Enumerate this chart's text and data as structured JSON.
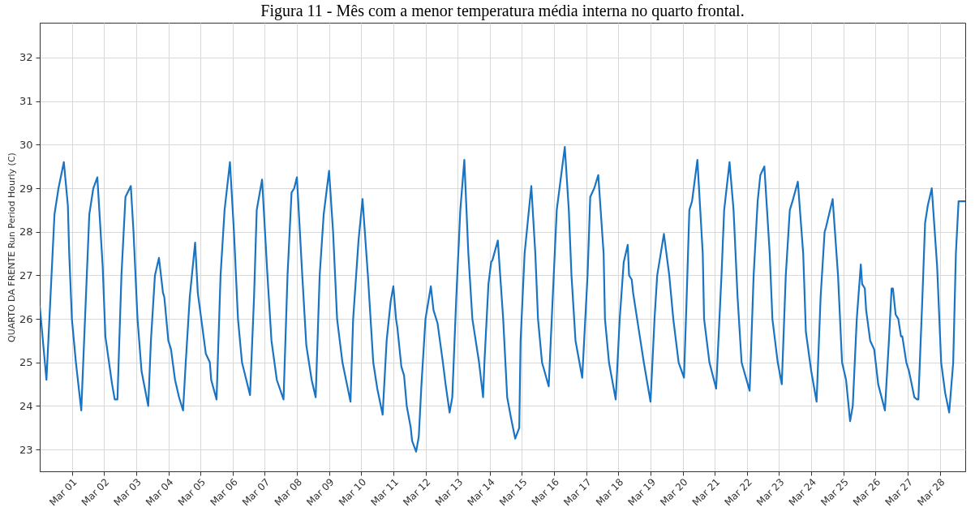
{
  "chart_data": {
    "type": "line",
    "title": "Figura 11 - Mês com a menor temperatura média interna no quarto frontal.",
    "ylabel": "QUARTO DA FRENTE Run Period Hourly (C)",
    "x": [
      "--02-28T00:00",
      "--02-28T05:00",
      "--02-28T11:00",
      "--02-28T14:00",
      "--02-28T18:00",
      "--02-28T21:00",
      "--02-28T22:00",
      "--03-01T00:00",
      "--03-01T03:00",
      "--03-01T07:00",
      "--03-01T13:00",
      "--03-01T16:00",
      "--03-01T19:00",
      "--03-01T23:00",
      "--03-02T01:00",
      "--03-02T06:00",
      "--03-02T08:00",
      "--03-02T10:00",
      "--03-02T13:00",
      "--03-02T16:00",
      "--03-02T20:00",
      "--03-02T22:00",
      "--03-03T01:00",
      "--03-03T04:00",
      "--03-03T09:00",
      "--03-03T11:00",
      "--03-03T14:00",
      "--03-03T17:00",
      "--03-03T20:00",
      "--03-03T21:00",
      "--03-04T00:00",
      "--03-04T02:00",
      "--03-04T05:00",
      "--03-04T08:00",
      "--03-04T11:00",
      "--03-04T13:00",
      "--03-04T16:00",
      "--03-04T20:00",
      "--03-04T22:00",
      "--03-05T01:00",
      "--03-05T04:00",
      "--03-05T07:00",
      "--03-05T08:00",
      "--03-05T12:00",
      "--03-05T15:00",
      "--03-05T18:00",
      "--03-05T22:00",
      "--03-06T01:00",
      "--03-06T04:00",
      "--03-06T07:00",
      "--03-06T13:00",
      "--03-06T16:00",
      "--03-06T18:00",
      "--03-06T22:00",
      "--03-07T02:00",
      "--03-07T05:00",
      "--03-07T09:00",
      "--03-07T14:00",
      "--03-07T17:00",
      "--03-07T20:00",
      "--03-07T22:00",
      "--03-08T00:00",
      "--03-08T04:00",
      "--03-08T07:00",
      "--03-08T11:00",
      "--03-08T14:00",
      "--03-08T17:00",
      "--03-08T20:00",
      "--03-09T00:00",
      "--03-09T03:00",
      "--03-09T06:00",
      "--03-09T10:00",
      "--03-09T16:00",
      "--03-09T18:00",
      "--03-09T22:00",
      "--03-10T01:00",
      "--03-10T05:00",
      "--03-10T09:00",
      "--03-10T12:00",
      "--03-10T16:00",
      "--03-10T19:00",
      "--03-10T22:00",
      "--03-11T00:00",
      "--03-11T02:00",
      "--03-11T03:00",
      "--03-11T06:00",
      "--03-11T08:00",
      "--03-11T10:00",
      "--03-11T13:00",
      "--03-11T14:00",
      "--03-11T17:00",
      "--03-11T19:00",
      "--03-11T21:00",
      "--03-12T00:00",
      "--03-12T04:00",
      "--03-12T06:00",
      "--03-12T09:00",
      "--03-12T13:00",
      "--03-12T15:00",
      "--03-12T18:00",
      "--03-12T20:00",
      "--03-12T23:00",
      "--03-13T02:00",
      "--03-13T05:00",
      "--03-13T08:00",
      "--03-13T11:00",
      "--03-13T16:00",
      "--03-13T19:00",
      "--03-13T20:00",
      "--03-13T23:00",
      "--03-14T01:00",
      "--03-14T02:00",
      "--03-14T06:00",
      "--03-14T10:00",
      "--03-14T13:00",
      "--03-14T16:00",
      "--03-14T19:00",
      "--03-14T22:00",
      "--03-14T23:00",
      "--03-15T02:00",
      "--03-15T07:00",
      "--03-15T10:00",
      "--03-15T12:00",
      "--03-15T15:00",
      "--03-15T20:00",
      "--03-15T23:00",
      "--03-16T02:00",
      "--03-16T08:00",
      "--03-16T11:00",
      "--03-16T13:00",
      "--03-16T16:00",
      "--03-16T21:00",
      "--03-17T01:00",
      "--03-17T03:00",
      "--03-17T06:00",
      "--03-17T09:00",
      "--03-17T13:00",
      "--03-17T14:00",
      "--03-17T17:00",
      "--03-17T22:00",
      "--03-18T01:00",
      "--03-18T04:00",
      "--03-18T07:00",
      "--03-18T08:00",
      "--03-18T10:00",
      "--03-18T11:00",
      "--03-18T16:00",
      "--03-18T19:00",
      "--03-19T00:00",
      "--03-19T03:00",
      "--03-19T05:00",
      "--03-19T10:00",
      "--03-19T14:00",
      "--03-19T17:00",
      "--03-19T21:00",
      "--03-20T01:00",
      "--03-20T03:00",
      "--03-20T05:00",
      "--03-20T07:00",
      "--03-20T11:00",
      "--03-20T15:00",
      "--03-20T16:00",
      "--03-20T20:00",
      "--03-21T01:00",
      "--03-21T05:00",
      "--03-21T07:00",
      "--03-21T11:00",
      "--03-21T14:00",
      "--03-21T17:00",
      "--03-21T20:00",
      "--03-22T02:00",
      "--03-22T05:00",
      "--03-22T08:00",
      "--03-22T10:00",
      "--03-22T13:00",
      "--03-22T17:00",
      "--03-22T19:00",
      "--03-22T23:00",
      "--03-23T02:00",
      "--03-23T05:00",
      "--03-23T08:00",
      "--03-23T10:00",
      "--03-23T14:00",
      "--03-23T18:00",
      "--03-23T20:00",
      "--03-24T00:00",
      "--03-24T04:00",
      "--03-24T07:00",
      "--03-24T10:00",
      "--03-24T11:00",
      "--03-24T16:00",
      "--03-24T20:00",
      "--03-24T23:00",
      "--03-25T02:00",
      "--03-25T05:00",
      "--03-25T07:00",
      "--03-25T10:00",
      "--03-25T13:00",
      "--03-25T14:00",
      "--03-25T16:00",
      "--03-25T17:00",
      "--03-25T20:00",
      "--03-25T23:00",
      "--03-26T02:00",
      "--03-26T07:00",
      "--03-26T10:00",
      "--03-26T12:00",
      "--03-26T13:00",
      "--03-26T15:00",
      "--03-26T17:00",
      "--03-26T19:00",
      "--03-26T20:00",
      "--03-26T23:00",
      "--03-27T01:00",
      "--03-27T05:00",
      "--03-27T07:00",
      "--03-27T08:00",
      "--03-27T11:00",
      "--03-27T13:00",
      "--03-27T15:00",
      "--03-27T18:00",
      "--03-27T22:00",
      "--03-28T01:00",
      "--03-28T04:00",
      "--03-28T07:00",
      "--03-28T10:00",
      "--03-28T12:00",
      "--03-28T14:00",
      "--03-28T17:00",
      "--03-28T19:00"
    ],
    "series": [
      {
        "color": "#1a74c4",
        "values": [
          26.3,
          24.6,
          28.4,
          29.0,
          29.6,
          28.6,
          27.5,
          26.0,
          25.0,
          23.9,
          28.4,
          29.0,
          29.25,
          27.2,
          25.6,
          24.5,
          24.15,
          24.15,
          27.0,
          28.8,
          29.05,
          28.0,
          26.0,
          24.8,
          24.0,
          25.5,
          27.0,
          27.4,
          26.6,
          26.5,
          25.5,
          25.3,
          24.6,
          24.2,
          23.9,
          25.0,
          26.5,
          27.75,
          26.6,
          25.9,
          25.2,
          25.0,
          24.6,
          24.15,
          27.0,
          28.5,
          29.6,
          28.0,
          26.0,
          25.0,
          24.25,
          26.5,
          28.5,
          29.2,
          27.0,
          25.5,
          24.6,
          24.15,
          27.0,
          28.9,
          29.0,
          29.25,
          27.0,
          25.4,
          24.6,
          24.2,
          27.0,
          28.4,
          29.4,
          28.0,
          26.0,
          25.0,
          24.1,
          26.0,
          27.8,
          28.75,
          27.0,
          25.0,
          24.4,
          23.8,
          25.5,
          26.4,
          26.75,
          26.0,
          25.8,
          24.9,
          24.7,
          24.0,
          23.5,
          23.2,
          22.95,
          23.3,
          24.5,
          26.0,
          26.75,
          26.2,
          25.9,
          25.0,
          24.5,
          23.85,
          24.2,
          26.5,
          28.5,
          29.65,
          27.5,
          26.0,
          25.0,
          24.2,
          25.0,
          26.8,
          27.3,
          27.35,
          27.8,
          26.0,
          24.2,
          23.7,
          23.25,
          23.5,
          25.5,
          27.5,
          29.05,
          27.5,
          26.0,
          25.0,
          24.45,
          26.5,
          28.5,
          29.95,
          28.5,
          27.0,
          25.5,
          24.65,
          27.0,
          28.8,
          29.0,
          29.3,
          27.5,
          26.0,
          25.0,
          24.15,
          26.0,
          27.3,
          27.7,
          27.0,
          26.9,
          26.6,
          25.6,
          25.0,
          24.1,
          26.0,
          27.0,
          27.95,
          27.0,
          26.0,
          25.0,
          24.65,
          26.5,
          28.5,
          28.7,
          29.65,
          27.5,
          26.0,
          25.0,
          24.4,
          27.0,
          28.5,
          29.6,
          28.5,
          26.5,
          25.0,
          24.35,
          27.0,
          28.7,
          29.3,
          29.5,
          27.5,
          26.0,
          25.0,
          24.5,
          27.0,
          28.5,
          28.7,
          29.15,
          27.5,
          25.7,
          24.8,
          24.1,
          26.5,
          28.0,
          28.1,
          28.75,
          27.0,
          25.0,
          24.6,
          23.65,
          24.0,
          26.0,
          27.25,
          26.8,
          26.7,
          26.2,
          25.5,
          25.3,
          24.5,
          23.9,
          25.5,
          26.7,
          26.7,
          26.1,
          26.0,
          25.6,
          25.6,
          25.0,
          24.8,
          24.2,
          24.15,
          24.15,
          26.5,
          28.2,
          28.6,
          29.0,
          27.2,
          25.0,
          24.3,
          23.85,
          25.0,
          27.5,
          28.7,
          28.7,
          28.7
        ]
      }
    ],
    "xlim": [
      "--02-28T00:00",
      "--03-28T19:00"
    ],
    "xticks": [
      {
        "value": "--03-01T00:00",
        "label": "Mar 01"
      },
      {
        "value": "--03-02T00:00",
        "label": "Mar 02"
      },
      {
        "value": "--03-03T00:00",
        "label": "Mar 03"
      },
      {
        "value": "--03-04T00:00",
        "label": "Mar 04"
      },
      {
        "value": "--03-05T00:00",
        "label": "Mar 05"
      },
      {
        "value": "--03-06T00:00",
        "label": "Mar 06"
      },
      {
        "value": "--03-07T00:00",
        "label": "Mar 07"
      },
      {
        "value": "--03-08T00:00",
        "label": "Mar 08"
      },
      {
        "value": "--03-09T00:00",
        "label": "Mar 09"
      },
      {
        "value": "--03-10T00:00",
        "label": "Mar 10"
      },
      {
        "value": "--03-11T00:00",
        "label": "Mar 11"
      },
      {
        "value": "--03-12T00:00",
        "label": "Mar 12"
      },
      {
        "value": "--03-13T00:00",
        "label": "Mar 13"
      },
      {
        "value": "--03-14T00:00",
        "label": "Mar 14"
      },
      {
        "value": "--03-15T00:00",
        "label": "Mar 15"
      },
      {
        "value": "--03-16T00:00",
        "label": "Mar 16"
      },
      {
        "value": "--03-17T00:00",
        "label": "Mar 17"
      },
      {
        "value": "--03-18T00:00",
        "label": "Mar 18"
      },
      {
        "value": "--03-19T00:00",
        "label": "Mar 19"
      },
      {
        "value": "--03-20T00:00",
        "label": "Mar 20"
      },
      {
        "value": "--03-21T00:00",
        "label": "Mar 21"
      },
      {
        "value": "--03-22T00:00",
        "label": "Mar 22"
      },
      {
        "value": "--03-23T00:00",
        "label": "Mar 23"
      },
      {
        "value": "--03-24T00:00",
        "label": "Mar 24"
      },
      {
        "value": "--03-25T00:00",
        "label": "Mar 25"
      },
      {
        "value": "--03-26T00:00",
        "label": "Mar 26"
      },
      {
        "value": "--03-27T00:00",
        "label": "Mar 27"
      },
      {
        "value": "--03-28T00:00",
        "label": "Mar 28"
      }
    ],
    "ylim": [
      22.5,
      32.8
    ],
    "yticks": [
      23,
      24,
      25,
      26,
      27,
      28,
      29,
      30,
      31,
      32
    ],
    "grid": true,
    "marker": "none",
    "line_style": "solid"
  }
}
